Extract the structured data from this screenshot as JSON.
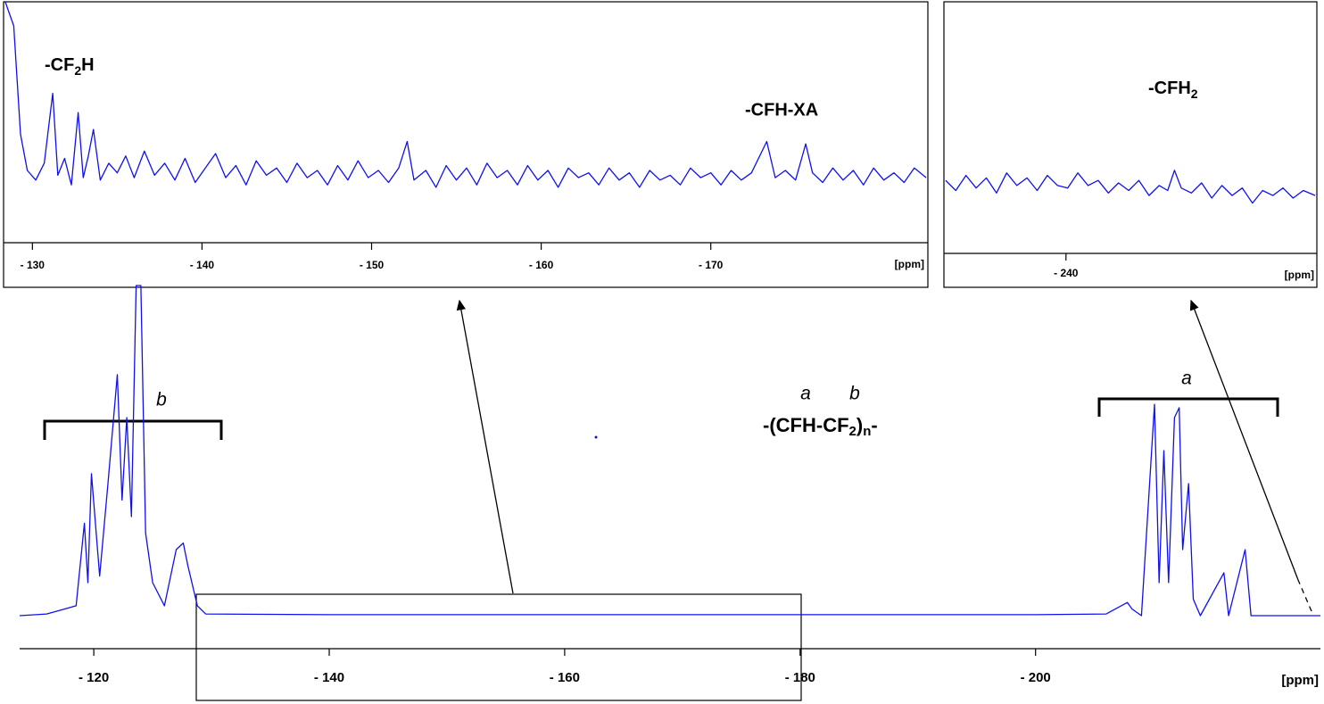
{
  "chart_data": [
    {
      "type": "line",
      "color": "#1010ee",
      "xlabel": "[ppm]",
      "xlim": [
        -113.7,
        -224.2
      ],
      "ylim": [
        0,
        100
      ],
      "xticks": [
        {
          "value": -120,
          "label": "- 120"
        },
        {
          "value": -140,
          "label": "- 140"
        },
        {
          "value": -160,
          "label": "- 160"
        },
        {
          "value": -180,
          "label": "- 180"
        },
        {
          "value": -200,
          "label": "- 200"
        }
      ],
      "x": [
        -113.7,
        -116,
        -117.5,
        -118.5,
        -119.2,
        -119.5,
        -119.8,
        -120.5,
        -121.2,
        -122,
        -122.4,
        -122.8,
        -123.2,
        -123.6,
        -124,
        -124.4,
        -125,
        -126,
        -127,
        -127.6,
        -128,
        -128.8,
        -129.5,
        -140,
        -160,
        -180,
        -200,
        -206,
        -207.8,
        -208.2,
        -209,
        -210.1,
        -210.5,
        -210.9,
        -211.3,
        -211.8,
        -212.2,
        -212.5,
        -213,
        -213.4,
        -214,
        -216,
        -216.4,
        -217.8,
        -218.3,
        -224.2
      ],
      "values": [
        0,
        0.5,
        2,
        3,
        28,
        10,
        43,
        12,
        40,
        73,
        35,
        60,
        30,
        100,
        100,
        25,
        10,
        3,
        20,
        22,
        15,
        3,
        0.5,
        0.3,
        0.3,
        0.3,
        0.3,
        0.5,
        4,
        2,
        0,
        64,
        10,
        50,
        10,
        60,
        63,
        20,
        40,
        5,
        0,
        13,
        0,
        20,
        0,
        0
      ],
      "annotations": [
        "b",
        "a"
      ],
      "formula": [
        "-(CFH-CF",
        "2",
        ")",
        "n",
        "-"
      ],
      "formula_labels": [
        "a",
        "b"
      ]
    },
    {
      "type": "line",
      "color": "#1010ee",
      "xlabel": "[ppm]",
      "xlim": [
        -128.3,
        -182.8
      ],
      "ylim": [
        0,
        100
      ],
      "xticks": [
        {
          "value": -130,
          "label": "- 130"
        },
        {
          "value": -140,
          "label": "- 140"
        },
        {
          "value": -150,
          "label": "- 150"
        },
        {
          "value": -160,
          "label": "- 160"
        },
        {
          "value": -170,
          "label": "- 170"
        }
      ],
      "x": [
        -128.4,
        -128.9,
        -129.3,
        -129.7,
        -130.2,
        -130.7,
        -131.2,
        -131.5,
        -131.9,
        -132.3,
        -132.7,
        -133.0,
        -133.3,
        -133.6,
        -134,
        -134.5,
        -135,
        -135.5,
        -136,
        -136.6,
        -137.2,
        -137.8,
        -138.4,
        -139,
        -139.6,
        -140.2,
        -140.8,
        -141.4,
        -142,
        -142.6,
        -143.2,
        -143.8,
        -144.4,
        -145,
        -145.6,
        -146.2,
        -146.8,
        -147.4,
        -148,
        -148.6,
        -149.2,
        -149.8,
        -150.4,
        -151,
        -151.6,
        -152.1,
        -152.5,
        -153.2,
        -153.8,
        -154.4,
        -155,
        -155.6,
        -156.2,
        -156.8,
        -157.4,
        -158,
        -158.6,
        -159.2,
        -159.8,
        -160.4,
        -161,
        -161.6,
        -162.2,
        -162.8,
        -163.4,
        -164,
        -164.6,
        -165.2,
        -165.8,
        -166.4,
        -167,
        -167.6,
        -168.2,
        -168.8,
        -169.4,
        -170,
        -170.6,
        -171.2,
        -171.8,
        -172.4,
        -173.3,
        -173.8,
        -174.4,
        -175,
        -175.6,
        -176,
        -176.6,
        -177.2,
        -177.8,
        -178.4,
        -179,
        -179.6,
        -180.2,
        -180.8,
        -181.4,
        -182,
        -182.7
      ],
      "values": [
        100,
        90,
        45,
        30,
        26,
        33,
        62,
        28,
        35,
        24,
        54,
        27,
        36,
        47,
        26,
        33,
        29,
        36,
        27,
        38,
        28,
        33,
        26,
        35,
        25,
        31,
        37,
        27,
        32,
        24,
        34,
        28,
        31,
        25,
        33,
        27,
        30,
        24,
        32,
        26,
        34,
        27,
        30,
        25,
        31,
        42,
        26,
        30,
        23,
        32,
        26,
        31,
        24,
        33,
        27,
        30,
        24,
        32,
        26,
        30,
        23,
        31,
        27,
        29,
        24,
        31,
        26,
        29,
        23,
        30,
        26,
        28,
        24,
        31,
        27,
        29,
        24,
        30,
        26,
        29,
        42,
        27,
        30,
        26,
        41,
        29,
        25,
        31,
        26,
        30,
        24,
        31,
        26,
        29,
        25,
        31,
        27
      ],
      "annotations": [
        [
          "-CF",
          "2",
          "H"
        ],
        [
          "-CFH-XA"
        ]
      ]
    },
    {
      "type": "line",
      "color": "#1010ee",
      "xlabel": "[ppm]",
      "xlim": [
        -232.8,
        -254.8
      ],
      "ylim": [
        0,
        100
      ],
      "xticks": [
        {
          "value": -240,
          "label": "- 240"
        }
      ],
      "x": [
        -232.9,
        -233.5,
        -234.1,
        -234.7,
        -235.3,
        -235.9,
        -236.5,
        -237.1,
        -237.7,
        -238.3,
        -238.9,
        -239.5,
        -240.1,
        -240.7,
        -241.3,
        -241.9,
        -242.5,
        -243.1,
        -243.7,
        -244.3,
        -244.9,
        -245.5,
        -246.0,
        -246.4,
        -246.8,
        -247.4,
        -248,
        -248.6,
        -249.2,
        -249.8,
        -250.4,
        -251,
        -251.6,
        -252.2,
        -252.8,
        -253.4,
        -254,
        -254.7
      ],
      "values": [
        29,
        25,
        31,
        26,
        30,
        24,
        32,
        27,
        30,
        25,
        31,
        27,
        26,
        32,
        27,
        29,
        24,
        28,
        25,
        29,
        23,
        27,
        25,
        33,
        26,
        24,
        28,
        22,
        27,
        23,
        26,
        20,
        25,
        23,
        26,
        22,
        25,
        23
      ],
      "annotations": [
        [
          "-CFH",
          "2"
        ]
      ]
    }
  ]
}
